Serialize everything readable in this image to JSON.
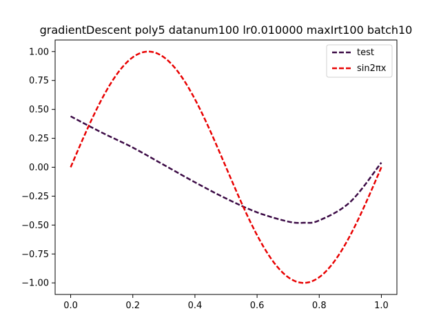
{
  "chart_data": {
    "type": "line",
    "title": "gradientDescent poly5 datanum100 lr0.010000 maxIrt100 batch10",
    "xlabel": "",
    "ylabel": "",
    "xlim": [
      -0.05,
      1.05
    ],
    "ylim": [
      -1.1,
      1.1
    ],
    "xticks": [
      "0.0",
      "0.2",
      "0.4",
      "0.6",
      "0.8",
      "1.0"
    ],
    "yticks": [
      "1.00",
      "0.75",
      "0.50",
      "0.25",
      "0.00",
      "−0.25",
      "−0.50",
      "−0.75",
      "−1.00"
    ],
    "grid": false,
    "legend_position": "top-right",
    "series": [
      {
        "name": "test",
        "color": "#3b0a45",
        "style": "dashed",
        "x": [
          0.0,
          0.1,
          0.2,
          0.3,
          0.4,
          0.5,
          0.6,
          0.7,
          0.75,
          0.8,
          0.9,
          1.0
        ],
        "y": [
          0.44,
          0.3,
          0.17,
          0.02,
          -0.13,
          -0.27,
          -0.39,
          -0.47,
          -0.48,
          -0.46,
          -0.3,
          0.04
        ]
      },
      {
        "name": "sin2πx",
        "color": "#e80000",
        "style": "dashed",
        "function": "sin(2*pi*x)",
        "x_range": [
          0,
          1
        ]
      }
    ]
  }
}
